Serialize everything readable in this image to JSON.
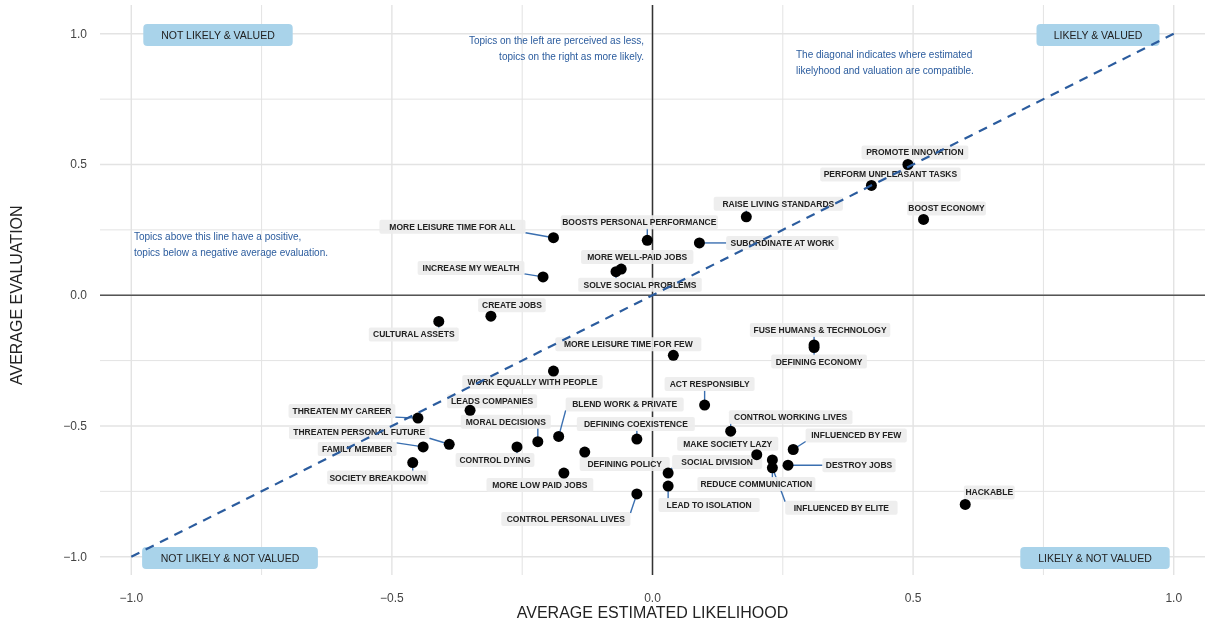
{
  "chart_data": {
    "type": "scatter",
    "xlabel": "AVERAGE ESTIMATED LIKELIHOOD",
    "ylabel": "AVERAGE EVALUATION",
    "xlim": [
      -1.06,
      1.06
    ],
    "ylim": [
      -1.07,
      1.11
    ],
    "xticks": [
      {
        "value": -1,
        "label": "−1.0"
      },
      {
        "value": -0.75,
        "label": null
      },
      {
        "value": -0.5,
        "label": "−0.5"
      },
      {
        "value": -0.25,
        "label": null
      },
      {
        "value": 0,
        "label": "0.0"
      },
      {
        "value": 0.25,
        "label": null
      },
      {
        "value": 0.5,
        "label": "0.5"
      },
      {
        "value": 0.75,
        "label": null
      },
      {
        "value": 1,
        "label": "1.0"
      }
    ],
    "yticks": [
      {
        "value": -1,
        "label": "−1.0"
      },
      {
        "value": -0.75,
        "label": null
      },
      {
        "value": -0.5,
        "label": "−0.5"
      },
      {
        "value": -0.25,
        "label": null
      },
      {
        "value": 0,
        "label": "0.0"
      },
      {
        "value": 0.25,
        "label": null
      },
      {
        "value": 0.5,
        "label": "0.5"
      },
      {
        "value": 0.75,
        "label": null
      },
      {
        "value": 1,
        "label": "1.0"
      }
    ],
    "grid": true,
    "marker": "circle",
    "ref_lines": [
      {
        "axis": "x",
        "value": 0,
        "color": "#333333"
      },
      {
        "axis": "y",
        "value": 0,
        "color": "#555555"
      }
    ],
    "series": [
      {
        "color": "#000000",
        "x": [
          0.49,
          0.42,
          0.18,
          0.52,
          0.09,
          -0.01,
          -0.19,
          -0.06,
          -0.07,
          -0.21,
          -0.31,
          -0.41,
          0.04,
          0.31,
          0.31,
          0.1,
          0.15,
          0.2,
          0.27,
          0.26,
          0.03,
          0.23,
          0.23,
          0.6,
          0.03,
          -0.19,
          -0.45,
          -0.35,
          -0.39,
          -0.44,
          -0.46,
          -0.26,
          -0.22,
          -0.18,
          -0.03,
          -0.13,
          -0.17,
          -0.03
        ],
        "values": [
          0.5,
          0.42,
          0.3,
          0.29,
          0.2,
          0.21,
          0.22,
          0.1,
          0.09,
          0.07,
          -0.08,
          -0.1,
          -0.23,
          -0.19,
          -0.2,
          -0.42,
          -0.52,
          -0.61,
          -0.59,
          -0.65,
          -0.68,
          -0.63,
          -0.66,
          -0.8,
          -0.73,
          -0.29,
          -0.47,
          -0.44,
          -0.57,
          -0.58,
          -0.64,
          -0.58,
          -0.56,
          -0.54,
          -0.55,
          -0.6,
          -0.68,
          -0.76
        ]
      },
      {
        "type": "line",
        "color": "#2b5c9e",
        "line_style": "dashed",
        "marker": "none",
        "x": [
          -1,
          1
        ],
        "values": [
          -1,
          1
        ]
      }
    ],
    "annotations": [
      "NOT LIKELY & VALUED",
      "LIKELY & VALUED",
      "NOT LIKELY & NOT VALUED",
      "LIKELY & NOT VALUED",
      "Topics on the left are perceived as less,\ntopics on the right as more likely.",
      "The diagonal indicates where estimated\nlikelyhood and valuation are compatible.",
      "Topics above this line have a positive,\ntopics below a negative average evaluation.",
      {
        "text": "PROMOTE INNOVATION",
        "x": 0.49,
        "y": 0.5
      },
      {
        "text": "PERFORM UNPLEASANT TASKS",
        "x": 0.42,
        "y": 0.42
      },
      {
        "text": "RAISE LIVING STANDARDS",
        "x": 0.18,
        "y": 0.3
      },
      {
        "text": "BOOST ECONOMY",
        "x": 0.52,
        "y": 0.29
      },
      {
        "text": "SUBORDINATE AT WORK",
        "x": 0.09,
        "y": 0.2
      },
      {
        "text": "BOOSTS PERSONAL PERFORMANCE",
        "x": -0.01,
        "y": 0.21
      },
      {
        "text": "MORE LEISURE TIME FOR ALL",
        "x": -0.19,
        "y": 0.22
      },
      {
        "text": "MORE WELL-PAID JOBS",
        "x": -0.06,
        "y": 0.1
      },
      {
        "text": "SOLVE SOCIAL PROBLEMS",
        "x": -0.07,
        "y": 0.09
      },
      {
        "text": "INCREASE MY WEALTH",
        "x": -0.21,
        "y": 0.07
      },
      {
        "text": "CREATE JOBS",
        "x": -0.31,
        "y": -0.08
      },
      {
        "text": "CULTURAL ASSETS",
        "x": -0.41,
        "y": -0.1
      },
      {
        "text": "MORE LEISURE TIME FOR FEW",
        "x": 0.04,
        "y": -0.23
      },
      {
        "text": "FUSE HUMANS & TECHNOLOGY",
        "x": 0.31,
        "y": -0.19
      },
      {
        "text": "DEFINING ECONOMY",
        "x": 0.31,
        "y": -0.2
      },
      {
        "text": "ACT RESPONSIBLY",
        "x": 0.1,
        "y": -0.42
      },
      {
        "text": "CONTROL WORKING LIVES",
        "x": 0.15,
        "y": -0.52
      },
      {
        "text": "MAKE SOCIETY LAZY",
        "x": 0.2,
        "y": -0.61
      },
      {
        "text": "INFLUENCED BY FEW",
        "x": 0.27,
        "y": -0.59
      },
      {
        "text": "DESTROY JOBS",
        "x": 0.26,
        "y": -0.65
      },
      {
        "text": "SOCIAL DIVISION",
        "x": 0.03,
        "y": -0.68
      },
      {
        "text": "REDUCE COMMUNICATION",
        "x": 0.23,
        "y": -0.63
      },
      {
        "text": "INFLUENCED BY ELITE",
        "x": 0.23,
        "y": -0.66
      },
      {
        "text": "HACKABLE",
        "x": 0.6,
        "y": -0.8
      },
      {
        "text": "LEAD TO ISOLATION",
        "x": 0.03,
        "y": -0.73
      },
      {
        "text": "WORK EQUALLY WITH PEOPLE",
        "x": -0.19,
        "y": -0.29
      },
      {
        "text": "THREATEN MY CAREER",
        "x": -0.45,
        "y": -0.47
      },
      {
        "text": "LEADS COMPANIES",
        "x": -0.35,
        "y": -0.44
      },
      {
        "text": "THREATEN PERSONAL FUTURE",
        "x": -0.39,
        "y": -0.57
      },
      {
        "text": "FAMILY MEMBER",
        "x": -0.44,
        "y": -0.58
      },
      {
        "text": "SOCIETY BREAKDOWN",
        "x": -0.46,
        "y": -0.64
      },
      {
        "text": "CONTROL DYING",
        "x": -0.26,
        "y": -0.58
      },
      {
        "text": "MORAL DECISIONS",
        "x": -0.22,
        "y": -0.56
      },
      {
        "text": "BLEND WORK & PRIVATE",
        "x": -0.18,
        "y": -0.54
      },
      {
        "text": "DEFINING COEXISTENCE",
        "x": -0.03,
        "y": -0.55
      },
      {
        "text": "DEFINING POLICY",
        "x": -0.13,
        "y": -0.6
      },
      {
        "text": "MORE LOW PAID JOBS",
        "x": -0.17,
        "y": -0.68
      },
      {
        "text": "CONTROL PERSONAL LIVES",
        "x": -0.03,
        "y": -0.76
      }
    ]
  }
}
